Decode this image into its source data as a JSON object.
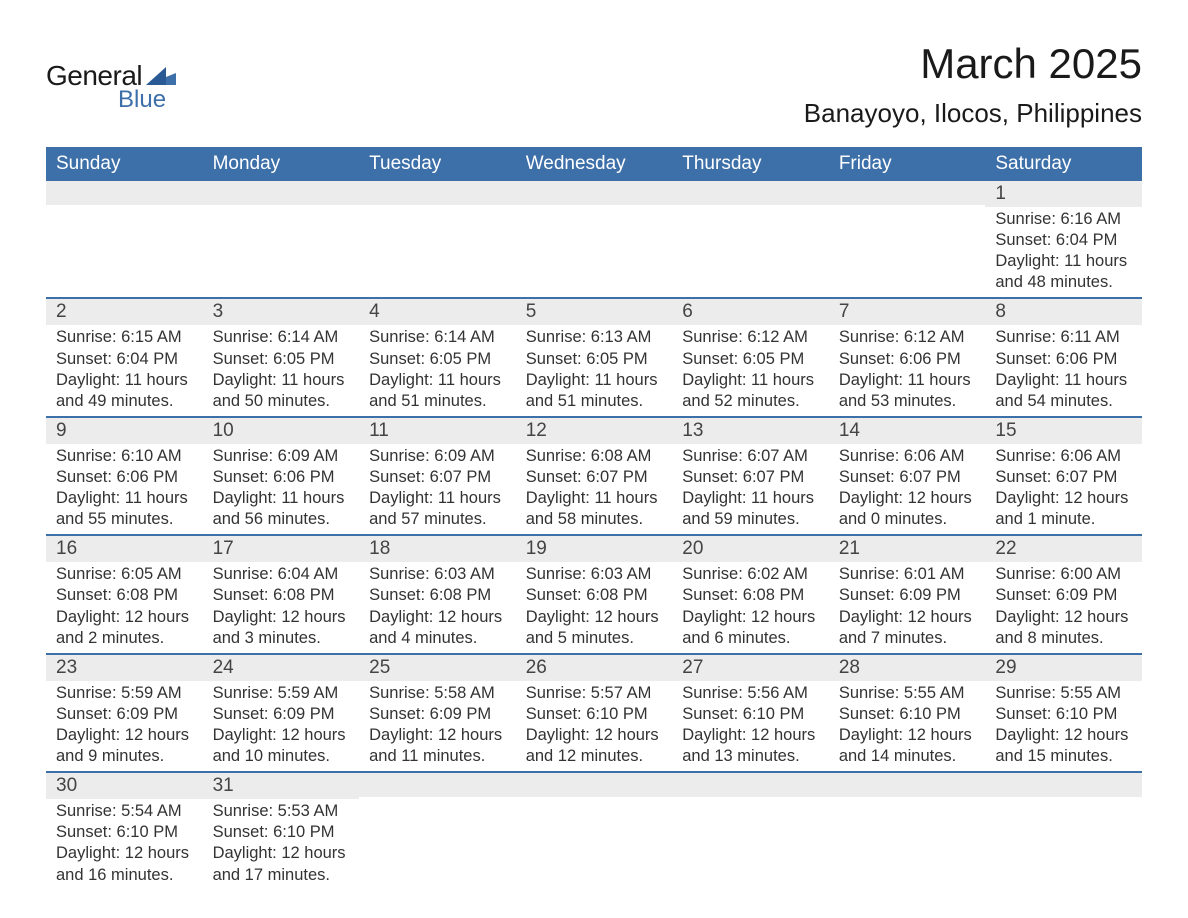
{
  "brand": {
    "name_part1": "General",
    "name_part2": "Blue",
    "text_color": "#1a1a1a",
    "accent_color": "#3d6fa8"
  },
  "title": {
    "month": "March 2025",
    "location": "Banayoyo, Ilocos, Philippines",
    "month_fontsize": 42,
    "location_fontsize": 26
  },
  "colors": {
    "header_bg": "#3d6fa8",
    "header_text": "#ffffff",
    "daynum_bg": "#ececec",
    "row_border": "#3d6fa8",
    "body_text": "#333333",
    "page_bg": "#ffffff"
  },
  "layout": {
    "columns": 7,
    "rows": 6,
    "cell_min_height": 84,
    "header_fontsize": 19,
    "daynum_fontsize": 19,
    "data_fontsize": 16.5
  },
  "day_headers": [
    "Sunday",
    "Monday",
    "Tuesday",
    "Wednesday",
    "Thursday",
    "Friday",
    "Saturday"
  ],
  "weeks": [
    [
      {
        "day": "",
        "sunrise": "",
        "sunset": "",
        "daylight": ""
      },
      {
        "day": "",
        "sunrise": "",
        "sunset": "",
        "daylight": ""
      },
      {
        "day": "",
        "sunrise": "",
        "sunset": "",
        "daylight": ""
      },
      {
        "day": "",
        "sunrise": "",
        "sunset": "",
        "daylight": ""
      },
      {
        "day": "",
        "sunrise": "",
        "sunset": "",
        "daylight": ""
      },
      {
        "day": "",
        "sunrise": "",
        "sunset": "",
        "daylight": ""
      },
      {
        "day": "1",
        "sunrise": "Sunrise: 6:16 AM",
        "sunset": "Sunset: 6:04 PM",
        "daylight": "Daylight: 11 hours and 48 minutes."
      }
    ],
    [
      {
        "day": "2",
        "sunrise": "Sunrise: 6:15 AM",
        "sunset": "Sunset: 6:04 PM",
        "daylight": "Daylight: 11 hours and 49 minutes."
      },
      {
        "day": "3",
        "sunrise": "Sunrise: 6:14 AM",
        "sunset": "Sunset: 6:05 PM",
        "daylight": "Daylight: 11 hours and 50 minutes."
      },
      {
        "day": "4",
        "sunrise": "Sunrise: 6:14 AM",
        "sunset": "Sunset: 6:05 PM",
        "daylight": "Daylight: 11 hours and 51 minutes."
      },
      {
        "day": "5",
        "sunrise": "Sunrise: 6:13 AM",
        "sunset": "Sunset: 6:05 PM",
        "daylight": "Daylight: 11 hours and 51 minutes."
      },
      {
        "day": "6",
        "sunrise": "Sunrise: 6:12 AM",
        "sunset": "Sunset: 6:05 PM",
        "daylight": "Daylight: 11 hours and 52 minutes."
      },
      {
        "day": "7",
        "sunrise": "Sunrise: 6:12 AM",
        "sunset": "Sunset: 6:06 PM",
        "daylight": "Daylight: 11 hours and 53 minutes."
      },
      {
        "day": "8",
        "sunrise": "Sunrise: 6:11 AM",
        "sunset": "Sunset: 6:06 PM",
        "daylight": "Daylight: 11 hours and 54 minutes."
      }
    ],
    [
      {
        "day": "9",
        "sunrise": "Sunrise: 6:10 AM",
        "sunset": "Sunset: 6:06 PM",
        "daylight": "Daylight: 11 hours and 55 minutes."
      },
      {
        "day": "10",
        "sunrise": "Sunrise: 6:09 AM",
        "sunset": "Sunset: 6:06 PM",
        "daylight": "Daylight: 11 hours and 56 minutes."
      },
      {
        "day": "11",
        "sunrise": "Sunrise: 6:09 AM",
        "sunset": "Sunset: 6:07 PM",
        "daylight": "Daylight: 11 hours and 57 minutes."
      },
      {
        "day": "12",
        "sunrise": "Sunrise: 6:08 AM",
        "sunset": "Sunset: 6:07 PM",
        "daylight": "Daylight: 11 hours and 58 minutes."
      },
      {
        "day": "13",
        "sunrise": "Sunrise: 6:07 AM",
        "sunset": "Sunset: 6:07 PM",
        "daylight": "Daylight: 11 hours and 59 minutes."
      },
      {
        "day": "14",
        "sunrise": "Sunrise: 6:06 AM",
        "sunset": "Sunset: 6:07 PM",
        "daylight": "Daylight: 12 hours and 0 minutes."
      },
      {
        "day": "15",
        "sunrise": "Sunrise: 6:06 AM",
        "sunset": "Sunset: 6:07 PM",
        "daylight": "Daylight: 12 hours and 1 minute."
      }
    ],
    [
      {
        "day": "16",
        "sunrise": "Sunrise: 6:05 AM",
        "sunset": "Sunset: 6:08 PM",
        "daylight": "Daylight: 12 hours and 2 minutes."
      },
      {
        "day": "17",
        "sunrise": "Sunrise: 6:04 AM",
        "sunset": "Sunset: 6:08 PM",
        "daylight": "Daylight: 12 hours and 3 minutes."
      },
      {
        "day": "18",
        "sunrise": "Sunrise: 6:03 AM",
        "sunset": "Sunset: 6:08 PM",
        "daylight": "Daylight: 12 hours and 4 minutes."
      },
      {
        "day": "19",
        "sunrise": "Sunrise: 6:03 AM",
        "sunset": "Sunset: 6:08 PM",
        "daylight": "Daylight: 12 hours and 5 minutes."
      },
      {
        "day": "20",
        "sunrise": "Sunrise: 6:02 AM",
        "sunset": "Sunset: 6:08 PM",
        "daylight": "Daylight: 12 hours and 6 minutes."
      },
      {
        "day": "21",
        "sunrise": "Sunrise: 6:01 AM",
        "sunset": "Sunset: 6:09 PM",
        "daylight": "Daylight: 12 hours and 7 minutes."
      },
      {
        "day": "22",
        "sunrise": "Sunrise: 6:00 AM",
        "sunset": "Sunset: 6:09 PM",
        "daylight": "Daylight: 12 hours and 8 minutes."
      }
    ],
    [
      {
        "day": "23",
        "sunrise": "Sunrise: 5:59 AM",
        "sunset": "Sunset: 6:09 PM",
        "daylight": "Daylight: 12 hours and 9 minutes."
      },
      {
        "day": "24",
        "sunrise": "Sunrise: 5:59 AM",
        "sunset": "Sunset: 6:09 PM",
        "daylight": "Daylight: 12 hours and 10 minutes."
      },
      {
        "day": "25",
        "sunrise": "Sunrise: 5:58 AM",
        "sunset": "Sunset: 6:09 PM",
        "daylight": "Daylight: 12 hours and 11 minutes."
      },
      {
        "day": "26",
        "sunrise": "Sunrise: 5:57 AM",
        "sunset": "Sunset: 6:10 PM",
        "daylight": "Daylight: 12 hours and 12 minutes."
      },
      {
        "day": "27",
        "sunrise": "Sunrise: 5:56 AM",
        "sunset": "Sunset: 6:10 PM",
        "daylight": "Daylight: 12 hours and 13 minutes."
      },
      {
        "day": "28",
        "sunrise": "Sunrise: 5:55 AM",
        "sunset": "Sunset: 6:10 PM",
        "daylight": "Daylight: 12 hours and 14 minutes."
      },
      {
        "day": "29",
        "sunrise": "Sunrise: 5:55 AM",
        "sunset": "Sunset: 6:10 PM",
        "daylight": "Daylight: 12 hours and 15 minutes."
      }
    ],
    [
      {
        "day": "30",
        "sunrise": "Sunrise: 5:54 AM",
        "sunset": "Sunset: 6:10 PM",
        "daylight": "Daylight: 12 hours and 16 minutes."
      },
      {
        "day": "31",
        "sunrise": "Sunrise: 5:53 AM",
        "sunset": "Sunset: 6:10 PM",
        "daylight": "Daylight: 12 hours and 17 minutes."
      },
      {
        "day": "",
        "sunrise": "",
        "sunset": "",
        "daylight": ""
      },
      {
        "day": "",
        "sunrise": "",
        "sunset": "",
        "daylight": ""
      },
      {
        "day": "",
        "sunrise": "",
        "sunset": "",
        "daylight": ""
      },
      {
        "day": "",
        "sunrise": "",
        "sunset": "",
        "daylight": ""
      },
      {
        "day": "",
        "sunrise": "",
        "sunset": "",
        "daylight": ""
      }
    ]
  ]
}
